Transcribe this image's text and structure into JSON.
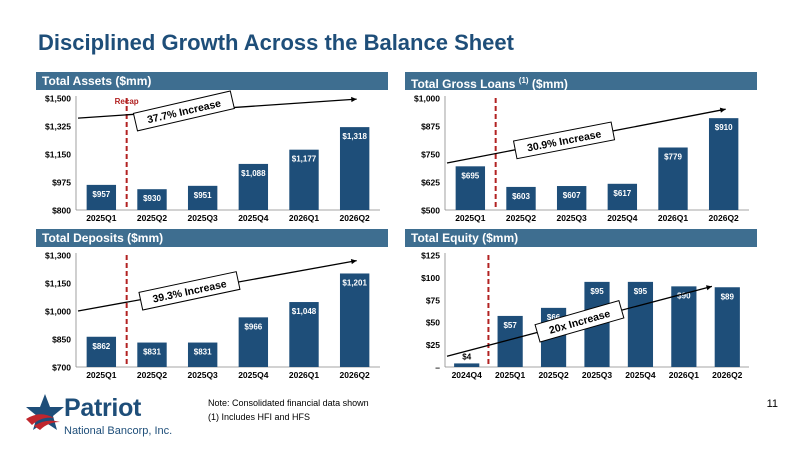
{
  "page": {
    "title": "Disciplined Growth Across the Balance Sheet",
    "page_number": "11",
    "note": "Note: Consolidated financial data shown",
    "footnote": "(1) Includes HFI and HFS",
    "logo_name": "Patriot",
    "logo_sub": "National Bancorp, Inc."
  },
  "colors": {
    "bar": "#1e4e79",
    "header": "#3e6e90",
    "dash": "#b22222",
    "title": "#1e4e79"
  },
  "headers": {
    "assets": "Total Assets ($mm)",
    "loans_pre": "Total Gross Loans ",
    "loans_sup": "(1)",
    "loans_post": " ($mm)",
    "deposits": "Total Deposits ($mm)",
    "equity": "Total Equity ($mm)"
  },
  "chart_data": [
    {
      "id": "assets",
      "type": "bar",
      "categories": [
        "2025Q1",
        "2025Q2",
        "2025Q3",
        "2025Q4",
        "2026Q1",
        "2026Q2"
      ],
      "values": [
        957,
        930,
        951,
        1088,
        1177,
        1318
      ],
      "labels": [
        "$957",
        "$930",
        "$951",
        "$1,088",
        "$1,177",
        "$1,318"
      ],
      "ylim": [
        800,
        1500
      ],
      "yticks": [
        800,
        975,
        1150,
        1325,
        1500
      ],
      "ytick_labels": [
        "$800",
        "$975",
        "$1,150",
        "$1,325",
        "$1,500"
      ],
      "annotation": "37.7% Increase",
      "marker_label": "Recap",
      "marker_after_index": 0
    },
    {
      "id": "loans",
      "type": "bar",
      "categories": [
        "2025Q1",
        "2025Q2",
        "2025Q3",
        "2025Q4",
        "2026Q1",
        "2026Q2"
      ],
      "values": [
        695,
        603,
        607,
        617,
        779,
        910
      ],
      "labels": [
        "$695",
        "$603",
        "$607",
        "$617",
        "$779",
        "$910"
      ],
      "ylim": [
        500,
        1000
      ],
      "yticks": [
        500,
        625,
        750,
        875,
        1000
      ],
      "ytick_labels": [
        "$500",
        "$625",
        "$750",
        "$875",
        "$1,000"
      ],
      "annotation": "30.9% Increase",
      "marker_after_index": 0
    },
    {
      "id": "deposits",
      "type": "bar",
      "categories": [
        "2025Q1",
        "2025Q2",
        "2025Q3",
        "2025Q4",
        "2026Q1",
        "2026Q2"
      ],
      "values": [
        862,
        831,
        831,
        966,
        1048,
        1201
      ],
      "labels": [
        "$862",
        "$831",
        "$831",
        "$966",
        "$1,048",
        "$1,201"
      ],
      "ylim": [
        700,
        1300
      ],
      "yticks": [
        700,
        850,
        1000,
        1150,
        1300
      ],
      "ytick_labels": [
        "$700",
        "$850",
        "$1,000",
        "$1,150",
        "$1,300"
      ],
      "annotation": "39.3% Increase",
      "marker_after_index": 0
    },
    {
      "id": "equity",
      "type": "bar",
      "categories": [
        "2024Q4",
        "2025Q1",
        "2025Q2",
        "2025Q3",
        "2025Q4",
        "2026Q1",
        "2026Q2"
      ],
      "values": [
        4,
        57,
        66,
        95,
        95,
        90,
        89
      ],
      "labels": [
        "$4",
        "$57",
        "$66",
        "$95",
        "$95",
        "$90",
        "$89"
      ],
      "ylim": [
        0,
        125
      ],
      "yticks": [
        0,
        25,
        50,
        75,
        100,
        125
      ],
      "ytick_labels": [
        "–",
        "$25",
        "$50",
        "$75",
        "$100",
        "$125"
      ],
      "annotation": "20x Increase",
      "marker_after_index": 0
    }
  ]
}
